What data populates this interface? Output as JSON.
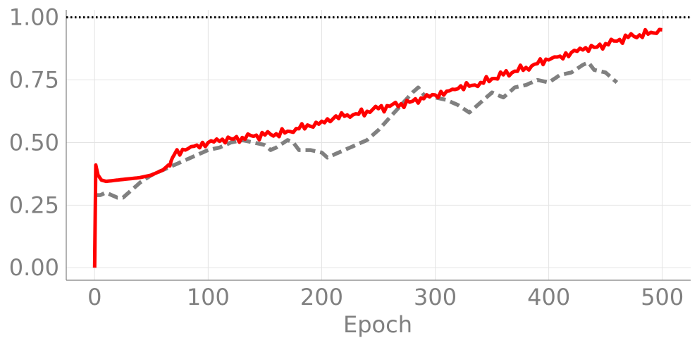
{
  "chart_data": {
    "type": "line",
    "title": "",
    "xlabel": "Epoch",
    "ylabel": "",
    "xlim": [
      -25,
      525
    ],
    "ylim": [
      -0.05,
      1.03
    ],
    "x_ticks": [
      0,
      100,
      200,
      300,
      400,
      500
    ],
    "x_tick_labels": [
      "0",
      "100",
      "200",
      "300",
      "400",
      "500"
    ],
    "y_ticks": [
      0.0,
      0.25,
      0.5,
      0.75,
      1.0
    ],
    "y_tick_labels": [
      "0.00",
      "0.25",
      "0.50",
      "0.75",
      "1.00"
    ],
    "grid": true,
    "legend": "none",
    "reference_line": {
      "y": 1.0,
      "style": "dotted",
      "color": "#000000"
    },
    "series": [
      {
        "color": "#ff0000",
        "style": "solid",
        "points": [
          [
            0,
            0.0
          ],
          [
            1,
            0.41
          ],
          [
            3,
            0.37
          ],
          [
            6,
            0.35
          ],
          [
            10,
            0.345
          ],
          [
            20,
            0.35
          ],
          [
            30,
            0.355
          ],
          [
            40,
            0.36
          ],
          [
            50,
            0.37
          ],
          [
            60,
            0.39
          ],
          [
            65,
            0.41
          ],
          [
            70,
            0.45
          ],
          [
            80,
            0.47
          ],
          [
            90,
            0.49
          ],
          [
            100,
            0.5
          ],
          [
            110,
            0.505
          ],
          [
            120,
            0.515
          ],
          [
            130,
            0.52
          ],
          [
            140,
            0.525
          ],
          [
            150,
            0.53
          ],
          [
            160,
            0.535
          ],
          [
            170,
            0.545
          ],
          [
            180,
            0.555
          ],
          [
            190,
            0.565
          ],
          [
            200,
            0.585
          ],
          [
            210,
            0.595
          ],
          [
            220,
            0.605
          ],
          [
            230,
            0.615
          ],
          [
            240,
            0.625
          ],
          [
            250,
            0.635
          ],
          [
            260,
            0.645
          ],
          [
            270,
            0.655
          ],
          [
            280,
            0.665
          ],
          [
            290,
            0.675
          ],
          [
            300,
            0.69
          ],
          [
            310,
            0.705
          ],
          [
            320,
            0.715
          ],
          [
            330,
            0.725
          ],
          [
            340,
            0.74
          ],
          [
            350,
            0.755
          ],
          [
            360,
            0.77
          ],
          [
            370,
            0.785
          ],
          [
            380,
            0.8
          ],
          [
            390,
            0.815
          ],
          [
            400,
            0.83
          ],
          [
            410,
            0.845
          ],
          [
            420,
            0.86
          ],
          [
            430,
            0.87
          ],
          [
            440,
            0.88
          ],
          [
            450,
            0.895
          ],
          [
            460,
            0.905
          ],
          [
            470,
            0.92
          ],
          [
            480,
            0.93
          ],
          [
            490,
            0.94
          ],
          [
            500,
            0.95
          ]
        ]
      },
      {
        "color": "#808080",
        "style": "dashed",
        "points": [
          [
            0,
            0.29
          ],
          [
            5,
            0.29
          ],
          [
            10,
            0.3
          ],
          [
            15,
            0.29
          ],
          [
            20,
            0.28
          ],
          [
            25,
            0.28
          ],
          [
            30,
            0.3
          ],
          [
            40,
            0.34
          ],
          [
            50,
            0.37
          ],
          [
            60,
            0.39
          ],
          [
            70,
            0.41
          ],
          [
            80,
            0.43
          ],
          [
            90,
            0.45
          ],
          [
            100,
            0.47
          ],
          [
            110,
            0.48
          ],
          [
            120,
            0.5
          ],
          [
            130,
            0.51
          ],
          [
            140,
            0.5
          ],
          [
            150,
            0.49
          ],
          [
            155,
            0.47
          ],
          [
            160,
            0.48
          ],
          [
            170,
            0.51
          ],
          [
            175,
            0.5
          ],
          [
            180,
            0.47
          ],
          [
            190,
            0.47
          ],
          [
            200,
            0.46
          ],
          [
            205,
            0.44
          ],
          [
            210,
            0.45
          ],
          [
            220,
            0.47
          ],
          [
            230,
            0.49
          ],
          [
            240,
            0.51
          ],
          [
            250,
            0.55
          ],
          [
            260,
            0.6
          ],
          [
            270,
            0.65
          ],
          [
            280,
            0.7
          ],
          [
            285,
            0.72
          ],
          [
            290,
            0.69
          ],
          [
            300,
            0.68
          ],
          [
            310,
            0.67
          ],
          [
            320,
            0.65
          ],
          [
            330,
            0.62
          ],
          [
            340,
            0.66
          ],
          [
            350,
            0.7
          ],
          [
            360,
            0.68
          ],
          [
            370,
            0.72
          ],
          [
            380,
            0.73
          ],
          [
            390,
            0.75
          ],
          [
            400,
            0.74
          ],
          [
            410,
            0.77
          ],
          [
            420,
            0.78
          ],
          [
            430,
            0.81
          ],
          [
            435,
            0.82
          ],
          [
            440,
            0.79
          ],
          [
            450,
            0.78
          ],
          [
            455,
            0.76
          ],
          [
            460,
            0.74
          ]
        ]
      }
    ]
  }
}
